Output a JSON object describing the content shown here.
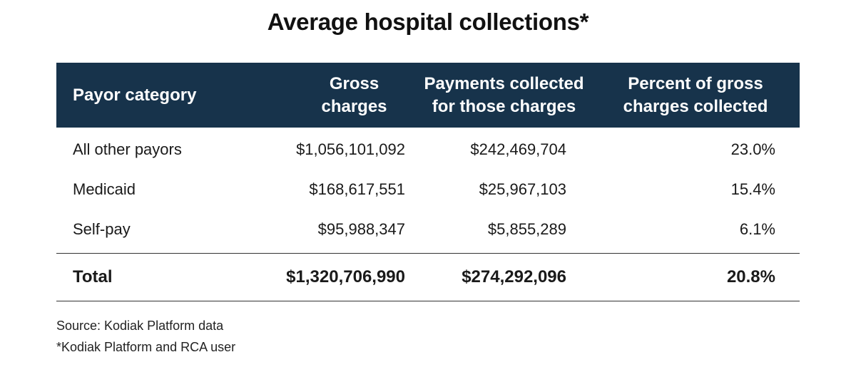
{
  "chart_data": {
    "type": "table",
    "title": "Average hospital collections*",
    "columns": [
      "Payor category",
      "Gross charges",
      "Payments collected for those charges",
      "Percent of gross charges collected"
    ],
    "header_lines": [
      [
        "Payor category"
      ],
      [
        "Gross",
        "charges"
      ],
      [
        "Payments collected",
        "for those charges"
      ],
      [
        "Percent of gross",
        "charges collected"
      ]
    ],
    "rows": [
      {
        "category": "All other payors",
        "gross": "$1,056,101,092",
        "payments": "$242,469,704",
        "percent": "23.0%"
      },
      {
        "category": "Medicaid",
        "gross": "$168,617,551",
        "payments": "$25,967,103",
        "percent": "15.4%"
      },
      {
        "category": "Self-pay",
        "gross": "$95,988,347",
        "payments": "$5,855,289",
        "percent": "6.1%"
      }
    ],
    "total": {
      "category": "Total",
      "gross": "$1,320,706,990",
      "payments": "$274,292,096",
      "percent": "20.8%"
    },
    "source": "Source: Kodiak Platform data",
    "footnote": "*Kodiak Platform and RCA user"
  },
  "colors": {
    "header_bg": "#17334b",
    "header_text": "#ffffff",
    "rule": "#333333"
  }
}
